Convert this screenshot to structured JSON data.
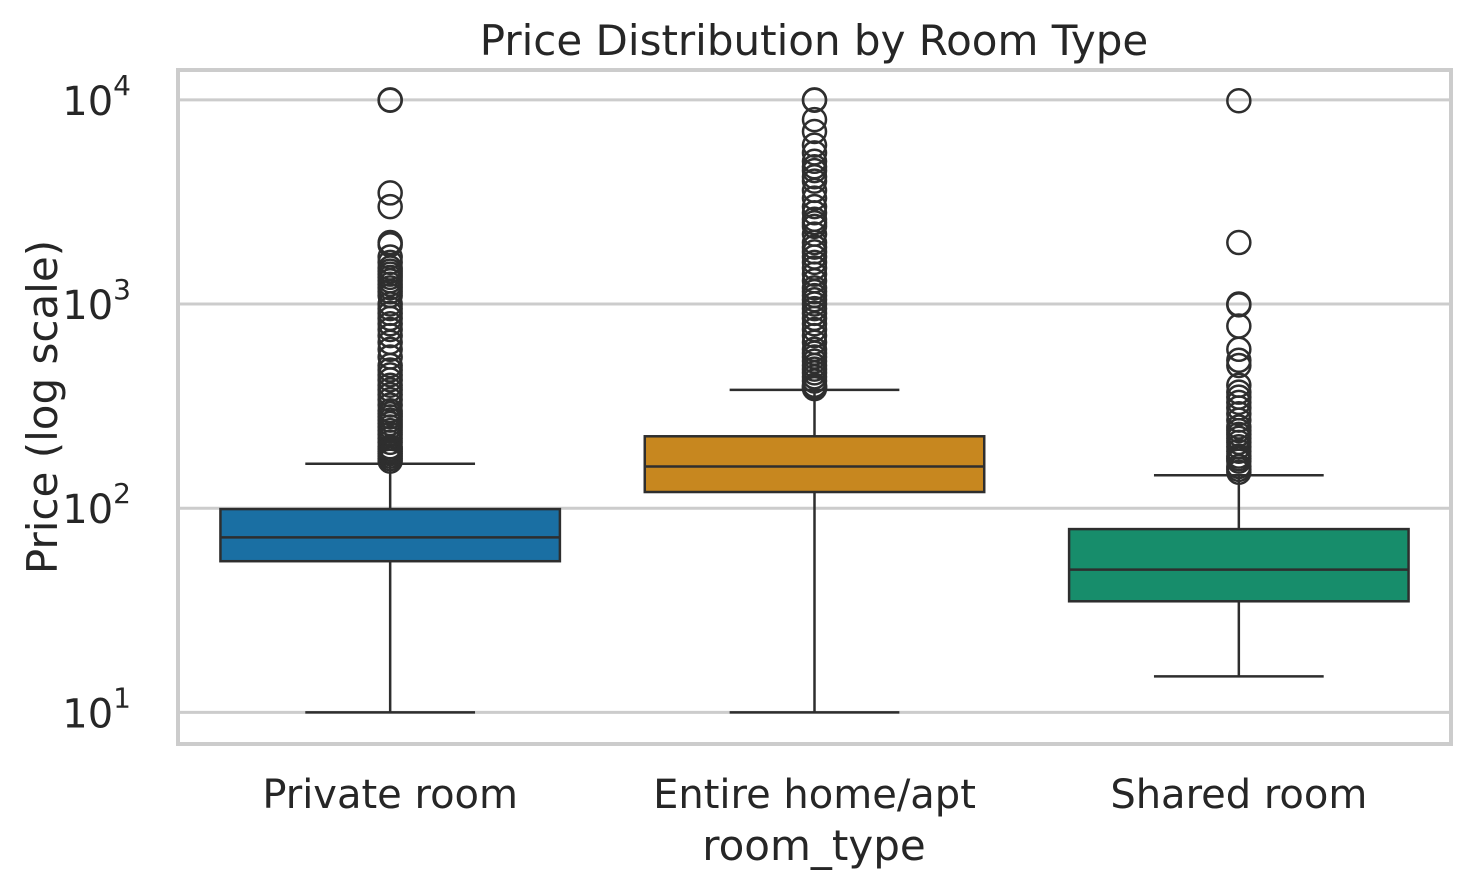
{
  "chart_data": {
    "type": "box",
    "title": "Price Distribution by Room Type",
    "xlabel": "room_type",
    "ylabel": "Price (log scale)",
    "yscale": "log",
    "ylim": [
      7,
      14000
    ],
    "y_ticks": [
      {
        "value": 10,
        "base": "10",
        "exp": "1"
      },
      {
        "value": 100,
        "base": "10",
        "exp": "2"
      },
      {
        "value": 1000,
        "base": "10",
        "exp": "3"
      },
      {
        "value": 10000,
        "base": "10",
        "exp": "4"
      }
    ],
    "grid": "horizontal",
    "categories": [
      "Private room",
      "Entire home/apt",
      "Shared room"
    ],
    "colors": [
      "#1a6fa3",
      "#c7871f",
      "#178d6b"
    ],
    "boxes": [
      {
        "category": "Private room",
        "whisker_low": 10,
        "q1": 55,
        "median": 72,
        "q3": 99,
        "whisker_high": 165,
        "outliers": [
          10000,
          9950,
          3500,
          3000,
          2000,
          1950,
          1700,
          1600,
          1500,
          1450,
          1400,
          1350,
          1300,
          1250,
          1200,
          1150,
          1100,
          1000,
          950,
          900,
          850,
          800,
          750,
          700,
          650,
          600,
          550,
          500,
          475,
          450,
          425,
          400,
          380,
          360,
          340,
          320,
          300,
          290,
          280,
          270,
          260,
          250,
          240,
          230,
          220,
          210,
          200,
          195,
          190,
          185,
          180,
          175,
          170
        ]
      },
      {
        "category": "Entire home/apt",
        "whisker_low": 10,
        "q1": 120,
        "median": 160,
        "q3": 225,
        "whisker_high": 380,
        "outliers": [
          10000,
          9950,
          8000,
          7000,
          6000,
          5500,
          5000,
          4700,
          4500,
          4200,
          4000,
          3600,
          3300,
          3000,
          2800,
          2600,
          2500,
          2400,
          2200,
          2000,
          1900,
          1800,
          1700,
          1600,
          1500,
          1400,
          1300,
          1200,
          1150,
          1100,
          1050,
          1000,
          950,
          900,
          850,
          800,
          750,
          700,
          650,
          600,
          575,
          550,
          525,
          500,
          480,
          460,
          440,
          420,
          400,
          395,
          390,
          385
        ]
      },
      {
        "category": "Shared room",
        "whisker_low": 15,
        "q1": 35,
        "median": 50,
        "q3": 79,
        "whisker_high": 145,
        "outliers": [
          9900,
          2000,
          1000,
          990,
          780,
          600,
          530,
          500,
          400,
          370,
          350,
          330,
          310,
          290,
          270,
          250,
          240,
          230,
          220,
          210,
          200,
          190,
          180,
          175,
          170,
          160,
          155,
          150
        ]
      }
    ]
  }
}
